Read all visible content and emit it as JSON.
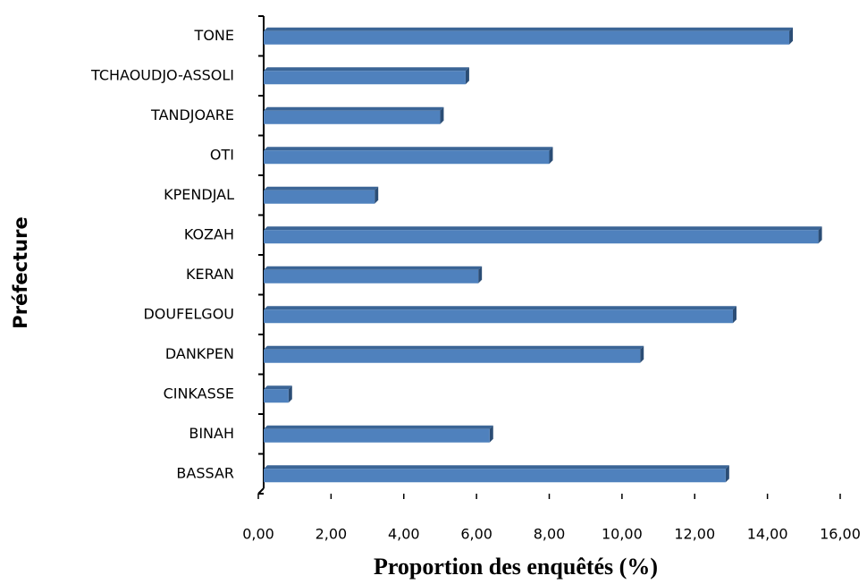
{
  "chart_data": {
    "type": "bar",
    "orientation": "horizontal",
    "x_axis_label": "Proportion des enquêtés (%)",
    "y_axis_label": "Préfecture",
    "categories": [
      "TONE",
      "TCHAOUDJO-ASSOLI",
      "TANDJOARE",
      "OTI",
      "KPENDJAL",
      "KOZAH",
      "KERAN",
      "DOUFELGOU",
      "DANKPEN",
      "CINKASSE",
      "BINAH",
      "BASSAR"
    ],
    "values": [
      14.6,
      5.7,
      5.0,
      8.0,
      3.2,
      15.4,
      6.05,
      13.05,
      10.5,
      0.83,
      6.36,
      12.85
    ],
    "color": "#4f81bd",
    "xlim": [
      0,
      16
    ],
    "xticks": [
      {
        "value": 0,
        "label": "0,00"
      },
      {
        "value": 2,
        "label": "2,00"
      },
      {
        "value": 4,
        "label": "4,00"
      },
      {
        "value": 6,
        "label": "6,00"
      },
      {
        "value": 8,
        "label": "8,00"
      },
      {
        "value": 10,
        "label": "10,00"
      },
      {
        "value": 12,
        "label": "12,00"
      },
      {
        "value": 14,
        "label": "14,00"
      },
      {
        "value": 16,
        "label": "16,00"
      }
    ],
    "grid": false
  }
}
